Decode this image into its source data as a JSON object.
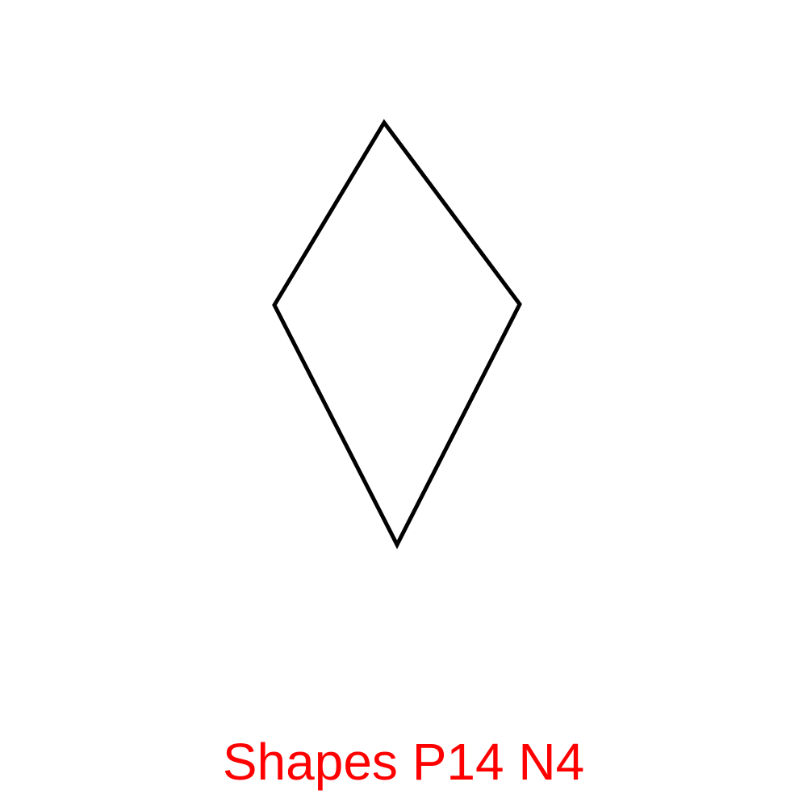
{
  "figure": {
    "shape": "rhombus",
    "stroke_color": "#000000",
    "fill_color": "#ffffff"
  },
  "caption": {
    "text": "Shapes P14 N4",
    "color": "#ff0000"
  }
}
